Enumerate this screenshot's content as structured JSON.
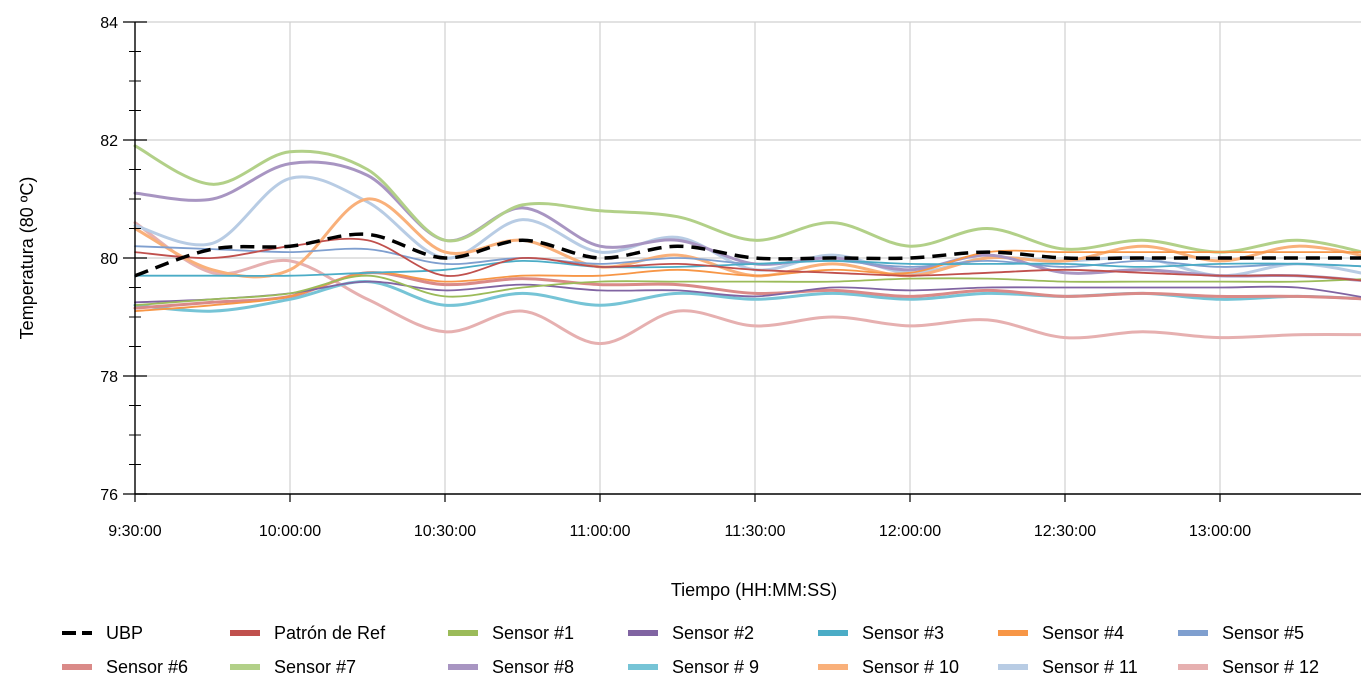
{
  "chart_data": {
    "type": "line",
    "xlabel": "Tiempo (HH:MM:SS)",
    "ylabel": "Temperatura (80 ºC)",
    "ylim": [
      76,
      84
    ],
    "y_ticks": [
      76,
      78,
      80,
      82,
      84
    ],
    "xlim": [
      "9:30:00",
      "13:30:00"
    ],
    "x_ticks": [
      "9:30:00",
      "10:00:00",
      "10:30:00",
      "11:00:00",
      "11:30:00",
      "12:00:00",
      "12:30:00",
      "13:00:00"
    ],
    "grid": true,
    "legend_position": "bottom",
    "x": [
      "9:30:00",
      "9:45:00",
      "10:00:00",
      "10:15:00",
      "10:30:00",
      "10:45:00",
      "11:00:00",
      "11:15:00",
      "11:30:00",
      "11:45:00",
      "12:00:00",
      "12:15:00",
      "12:30:00",
      "12:45:00",
      "13:00:00",
      "13:15:00",
      "13:30:00"
    ],
    "series": [
      {
        "name": "UBP",
        "color": "#000000",
        "dashed": true,
        "values": [
          79.7,
          80.15,
          80.2,
          80.4,
          80.0,
          80.3,
          80.0,
          80.2,
          80.0,
          80.0,
          80.0,
          80.1,
          80.0,
          80.0,
          80.0,
          80.0,
          80.0
        ]
      },
      {
        "name": "Patrón de Ref",
        "color": "#c0504d",
        "values": [
          80.1,
          80.0,
          80.2,
          80.3,
          79.7,
          80.0,
          79.85,
          79.9,
          79.8,
          79.75,
          79.7,
          79.75,
          79.8,
          79.75,
          79.7,
          79.7,
          79.6
        ]
      },
      {
        "name": "Sensor #1",
        "color": "#9bbb59",
        "values": [
          79.2,
          79.3,
          79.4,
          79.7,
          79.35,
          79.5,
          79.6,
          79.6,
          79.6,
          79.6,
          79.65,
          79.65,
          79.6,
          79.6,
          79.6,
          79.6,
          79.65
        ]
      },
      {
        "name": "Sensor #2",
        "color": "#8064a2",
        "values": [
          79.25,
          79.3,
          79.4,
          79.6,
          79.45,
          79.55,
          79.45,
          79.45,
          79.35,
          79.5,
          79.45,
          79.5,
          79.5,
          79.5,
          79.5,
          79.5,
          79.3
        ]
      },
      {
        "name": "Sensor #3",
        "color": "#4bacc6",
        "values": [
          79.7,
          79.7,
          79.7,
          79.75,
          79.8,
          79.95,
          79.85,
          79.85,
          79.9,
          79.95,
          79.9,
          79.9,
          79.9,
          79.85,
          79.9,
          79.9,
          79.85
        ]
      },
      {
        "name": "Sensor #4",
        "color": "#f79646",
        "values": [
          79.1,
          79.2,
          79.35,
          79.75,
          79.6,
          79.7,
          79.7,
          79.8,
          79.7,
          79.8,
          79.75,
          80.1,
          80.1,
          80.1,
          80.1,
          80.1,
          80.1
        ]
      },
      {
        "name": "Sensor #5",
        "color": "#7f9fcf",
        "values": [
          80.2,
          80.15,
          80.1,
          80.15,
          79.9,
          80.0,
          79.9,
          80.0,
          79.9,
          79.95,
          79.85,
          79.95,
          79.85,
          79.95,
          79.85,
          79.9,
          79.85
        ]
      },
      {
        "name": "Sensor #6",
        "color": "#da8a88",
        "values": [
          79.15,
          79.25,
          79.35,
          79.75,
          79.55,
          79.65,
          79.55,
          79.55,
          79.4,
          79.45,
          79.35,
          79.45,
          79.35,
          79.4,
          79.35,
          79.35,
          79.3
        ]
      },
      {
        "name": "Sensor #7",
        "color": "#b2d088",
        "values": [
          81.9,
          81.25,
          81.8,
          81.5,
          80.3,
          80.9,
          80.8,
          80.7,
          80.3,
          80.6,
          80.2,
          80.5,
          80.15,
          80.3,
          80.1,
          80.3,
          80.05
        ]
      },
      {
        "name": "Sensor #8",
        "color": "#a895c2",
        "values": [
          81.1,
          81.0,
          81.6,
          81.4,
          80.3,
          80.85,
          80.2,
          80.3,
          79.9,
          80.0,
          79.8,
          80.05,
          79.75,
          79.8,
          79.7,
          79.7,
          79.6
        ]
      },
      {
        "name": "Sensor # 9",
        "color": "#76c4d6",
        "values": [
          79.2,
          79.1,
          79.3,
          79.6,
          79.2,
          79.4,
          79.2,
          79.4,
          79.3,
          79.4,
          79.3,
          79.4,
          79.35,
          79.4,
          79.3,
          79.35,
          79.3
        ]
      },
      {
        "name": "Sensor # 10",
        "color": "#f9b07a",
        "values": [
          80.5,
          79.8,
          79.8,
          81.0,
          80.1,
          80.3,
          79.85,
          80.05,
          79.7,
          79.9,
          79.7,
          80.0,
          79.95,
          80.2,
          79.95,
          80.2,
          80.0
        ]
      },
      {
        "name": "Sensor # 11",
        "color": "#b8cce4",
        "values": [
          80.55,
          80.25,
          81.35,
          80.95,
          80.0,
          80.65,
          80.1,
          80.35,
          79.8,
          80.05,
          79.75,
          80.0,
          79.95,
          80.0,
          79.7,
          79.9,
          79.7
        ]
      },
      {
        "name": "Sensor # 12",
        "color": "#e6b0b0",
        "values": [
          80.6,
          79.75,
          79.95,
          79.3,
          78.75,
          79.1,
          78.55,
          79.1,
          78.85,
          79.0,
          78.85,
          78.95,
          78.65,
          78.75,
          78.65,
          78.7,
          78.7
        ]
      }
    ]
  }
}
